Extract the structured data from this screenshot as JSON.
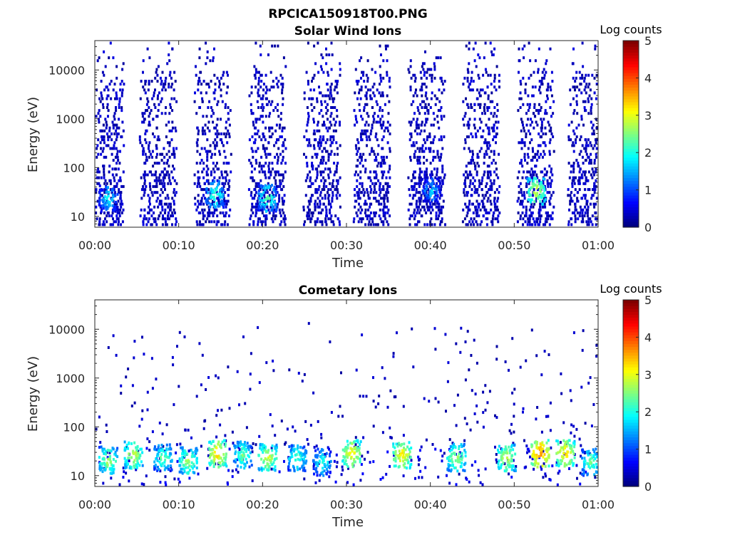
{
  "figure": {
    "title": "RPCICA150918T00.PNG"
  },
  "chart_data": [
    {
      "type": "heatmap",
      "title": "Solar Wind Ions",
      "xlabel": "Time",
      "ylabel": "Energy (eV)",
      "x_ticks": [
        "00:00",
        "00:10",
        "00:20",
        "00:30",
        "00:40",
        "00:50",
        "01:00"
      ],
      "xlim_minutes": [
        0,
        60
      ],
      "y_ticks": [
        "10",
        "100",
        "1000",
        "10000"
      ],
      "y_scale": "log",
      "ylim": [
        6,
        40000
      ],
      "colorbar": {
        "label": "Log counts",
        "ticks": [
          "0",
          "1",
          "2",
          "3",
          "4",
          "5"
        ],
        "range": [
          0,
          5
        ],
        "colormap": "jet"
      },
      "scan_centers_minutes": [
        1.2,
        7.5,
        14,
        20.5,
        27,
        33,
        39.5,
        46,
        52.5,
        58.5
      ],
      "hot_spots": [
        {
          "time_minutes": 1.5,
          "energy_eV": 25,
          "log_counts": 2.0
        },
        {
          "time_minutes": 14.2,
          "energy_eV": 30,
          "log_counts": 2.3
        },
        {
          "time_minutes": 20.5,
          "energy_eV": 25,
          "log_counts": 2.4
        },
        {
          "time_minutes": 40,
          "energy_eV": 35,
          "log_counts": 1.8
        },
        {
          "time_minutes": 52.5,
          "energy_eV": 35,
          "log_counts": 3.0
        }
      ]
    },
    {
      "type": "heatmap",
      "title": "Cometary Ions",
      "xlabel": "Time",
      "ylabel": "Energy (eV)",
      "x_ticks": [
        "00:00",
        "00:10",
        "00:20",
        "00:30",
        "00:40",
        "00:50",
        "01:00"
      ],
      "xlim_minutes": [
        0,
        60
      ],
      "y_ticks": [
        "10",
        "100",
        "1000",
        "10000"
      ],
      "y_scale": "log",
      "ylim": [
        6,
        40000
      ],
      "colorbar": {
        "label": "Log counts",
        "ticks": [
          "0",
          "1",
          "2",
          "3",
          "4",
          "5"
        ],
        "range": [
          0,
          5
        ],
        "colormap": "jet"
      },
      "hot_spots": [
        {
          "time_minutes": 1.5,
          "energy_eV": 22,
          "log_counts": 2.8
        },
        {
          "time_minutes": 4.5,
          "energy_eV": 28,
          "log_counts": 3.0
        },
        {
          "time_minutes": 8,
          "energy_eV": 25,
          "log_counts": 2.5
        },
        {
          "time_minutes": 11,
          "energy_eV": 22,
          "log_counts": 2.8
        },
        {
          "time_minutes": 14.5,
          "energy_eV": 30,
          "log_counts": 3.4
        },
        {
          "time_minutes": 17.5,
          "energy_eV": 28,
          "log_counts": 2.5
        },
        {
          "time_minutes": 20.5,
          "energy_eV": 25,
          "log_counts": 3.0
        },
        {
          "time_minutes": 24,
          "energy_eV": 25,
          "log_counts": 2.4
        },
        {
          "time_minutes": 27,
          "energy_eV": 20,
          "log_counts": 2.2
        },
        {
          "time_minutes": 30.5,
          "energy_eV": 30,
          "log_counts": 3.3
        },
        {
          "time_minutes": 36.5,
          "energy_eV": 28,
          "log_counts": 3.3
        },
        {
          "time_minutes": 43,
          "energy_eV": 25,
          "log_counts": 2.8
        },
        {
          "time_minutes": 49,
          "energy_eV": 25,
          "log_counts": 3.0
        },
        {
          "time_minutes": 53,
          "energy_eV": 30,
          "log_counts": 3.8
        },
        {
          "time_minutes": 56,
          "energy_eV": 30,
          "log_counts": 3.4
        },
        {
          "time_minutes": 59,
          "energy_eV": 20,
          "log_counts": 2.5
        }
      ]
    }
  ]
}
